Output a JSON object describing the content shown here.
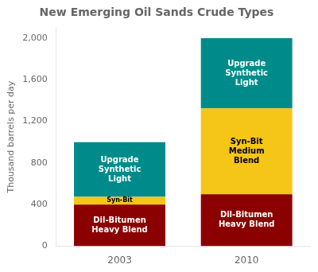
{
  "chart_data": {
    "type": "bar",
    "title": "New Emerging Oil Sands Crude Types",
    "ylabel": "Thousand barrels per day",
    "categories": [
      "2003",
      "2010"
    ],
    "stacked": true,
    "grid": false,
    "series": [
      {
        "color": "#8B0000",
        "values": [
          400,
          500
        ],
        "labels": [
          "Dil-Bitumen\nHeavy Blend",
          "Dil-Bitumen\nHeavy Blend"
        ]
      },
      {
        "color": "#F5C518",
        "values": [
          75,
          825
        ],
        "labels": [
          "Syn-Bit",
          "Syn-Bit\nMedium\nBlend"
        ]
      },
      {
        "color": "#008B8B",
        "values": [
          525,
          675
        ],
        "labels": [
          "Upgrade\nSynthetic\nLight",
          "Upgrade\nSynthetic\nLight"
        ]
      }
    ],
    "ylim": [
      0,
      2100
    ],
    "yticks": [
      0,
      400,
      800,
      {
        "value": 1200,
        "label": "1,200"
      },
      {
        "value": 1600,
        "label": "1,600"
      },
      {
        "value": 2000,
        "label": "2,000"
      }
    ]
  }
}
